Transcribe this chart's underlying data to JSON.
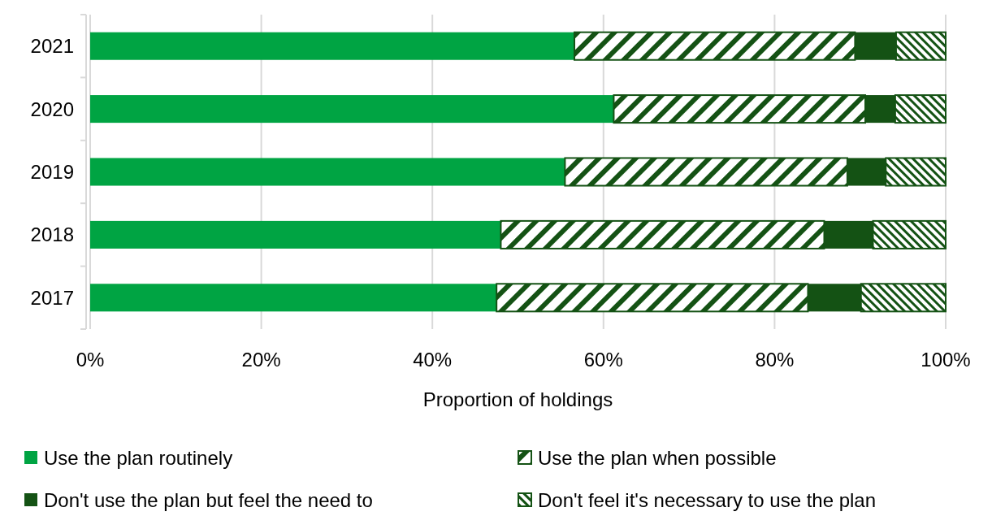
{
  "chart_data": {
    "type": "bar",
    "orientation": "horizontal",
    "stacked": true,
    "categories": [
      "2021",
      "2020",
      "2019",
      "2018",
      "2017"
    ],
    "series": [
      {
        "name": "Use the plan routinely",
        "color": "#00a443",
        "values": [
          56.6,
          61.2,
          55.5,
          48.0,
          47.5
        ]
      },
      {
        "name": "Use the plan when possible",
        "color": "#145214",
        "values": [
          32.8,
          29.4,
          33.0,
          37.8,
          36.4
        ]
      },
      {
        "name": "Don't use the plan but feel the need to",
        "color": "#145214",
        "values": [
          4.8,
          3.5,
          4.5,
          5.7,
          6.2
        ]
      },
      {
        "name": "Don't feel it's necessary to use the plan",
        "color": "#145214",
        "values": [
          5.8,
          5.9,
          7.0,
          8.5,
          9.9
        ]
      }
    ],
    "xlim": [
      0,
      100
    ],
    "xticks": [
      {
        "value": 0,
        "label": "0%"
      },
      {
        "value": 20,
        "label": "20%"
      },
      {
        "value": 40,
        "label": "40%"
      },
      {
        "value": 60,
        "label": "60%"
      },
      {
        "value": 80,
        "label": "80%"
      },
      {
        "value": 100,
        "label": "100%"
      }
    ],
    "xlabel": "Proportion of holdings",
    "grid": "x",
    "legend": "bottom"
  }
}
